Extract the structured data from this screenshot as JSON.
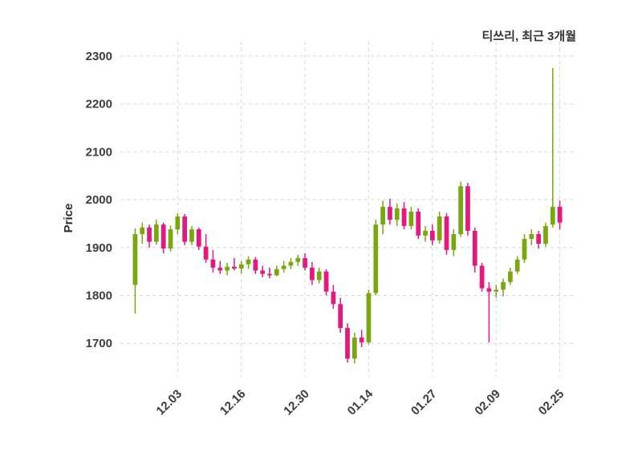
{
  "header": {
    "title": "티쓰리, 최근 3개월"
  },
  "chart_data": {
    "type": "candlestick",
    "title": "티쓰리, 최근 3개월",
    "xlabel": "",
    "ylabel": "Price",
    "ylim": [
      1630,
      2330
    ],
    "yticks": [
      1700,
      1800,
      1900,
      2000,
      2100,
      2200,
      2300
    ],
    "xtick_indices": [
      6,
      15,
      24,
      33,
      42,
      51,
      60
    ],
    "xtick_labels": [
      "12.03",
      "12.16",
      "12.30",
      "01.14",
      "01.27",
      "02.09",
      "02.25"
    ],
    "grid": true,
    "colors": {
      "up": "#78a80e",
      "down": "#e3197d",
      "grid": "#d6d6d6",
      "background": "#ffffff",
      "text": "#3d3d3d"
    },
    "candles_format": [
      "open",
      "high",
      "low",
      "close"
    ],
    "candles": [
      [
        1822,
        1940,
        1762,
        1928
      ],
      [
        1928,
        1952,
        1908,
        1942
      ],
      [
        1942,
        1948,
        1900,
        1912
      ],
      [
        1912,
        1958,
        1906,
        1948
      ],
      [
        1948,
        1952,
        1888,
        1898
      ],
      [
        1898,
        1946,
        1892,
        1938
      ],
      [
        1938,
        1972,
        1928,
        1965
      ],
      [
        1965,
        1970,
        1905,
        1912
      ],
      [
        1912,
        1945,
        1905,
        1938
      ],
      [
        1938,
        1942,
        1895,
        1902
      ],
      [
        1902,
        1928,
        1868,
        1875
      ],
      [
        1875,
        1895,
        1848,
        1858
      ],
      [
        1858,
        1872,
        1845,
        1852
      ],
      [
        1852,
        1868,
        1842,
        1860
      ],
      [
        1860,
        1878,
        1852,
        1856
      ],
      [
        1856,
        1872,
        1846,
        1865
      ],
      [
        1865,
        1882,
        1855,
        1875
      ],
      [
        1875,
        1880,
        1845,
        1852
      ],
      [
        1852,
        1862,
        1838,
        1845
      ],
      [
        1845,
        1858,
        1836,
        1842
      ],
      [
        1842,
        1862,
        1840,
        1855
      ],
      [
        1855,
        1872,
        1848,
        1862
      ],
      [
        1862,
        1878,
        1855,
        1870
      ],
      [
        1870,
        1885,
        1862,
        1878
      ],
      [
        1878,
        1888,
        1852,
        1858
      ],
      [
        1858,
        1870,
        1822,
        1832
      ],
      [
        1832,
        1858,
        1825,
        1850
      ],
      [
        1850,
        1855,
        1800,
        1808
      ],
      [
        1808,
        1822,
        1772,
        1782
      ],
      [
        1782,
        1795,
        1722,
        1732
      ],
      [
        1732,
        1742,
        1660,
        1668
      ],
      [
        1668,
        1722,
        1658,
        1712
      ],
      [
        1712,
        1728,
        1692,
        1702
      ],
      [
        1702,
        1812,
        1698,
        1805
      ],
      [
        1805,
        1958,
        1800,
        1948
      ],
      [
        1948,
        1998,
        1928,
        1985
      ],
      [
        1985,
        2002,
        1948,
        1958
      ],
      [
        1958,
        1992,
        1945,
        1982
      ],
      [
        1982,
        1995,
        1938,
        1945
      ],
      [
        1945,
        1985,
        1938,
        1975
      ],
      [
        1975,
        1982,
        1918,
        1925
      ],
      [
        1925,
        1945,
        1912,
        1935
      ],
      [
        1935,
        1948,
        1905,
        1915
      ],
      [
        1915,
        1975,
        1908,
        1965
      ],
      [
        1965,
        1972,
        1885,
        1895
      ],
      [
        1895,
        1938,
        1882,
        1928
      ],
      [
        1928,
        2038,
        1922,
        2028
      ],
      [
        2028,
        2035,
        1925,
        1935
      ],
      [
        1935,
        1942,
        1848,
        1862
      ],
      [
        1862,
        1868,
        1808,
        1815
      ],
      [
        1815,
        1828,
        1702,
        1808
      ],
      [
        1808,
        1822,
        1795,
        1812
      ],
      [
        1812,
        1835,
        1798,
        1828
      ],
      [
        1828,
        1858,
        1822,
        1850
      ],
      [
        1850,
        1882,
        1845,
        1875
      ],
      [
        1875,
        1928,
        1868,
        1918
      ],
      [
        1918,
        1938,
        1905,
        1928
      ],
      [
        1928,
        1935,
        1898,
        1908
      ],
      [
        1908,
        1952,
        1902,
        1945
      ],
      [
        1948,
        2275,
        1942,
        1985
      ],
      [
        1985,
        1998,
        1938,
        1952
      ]
    ]
  }
}
